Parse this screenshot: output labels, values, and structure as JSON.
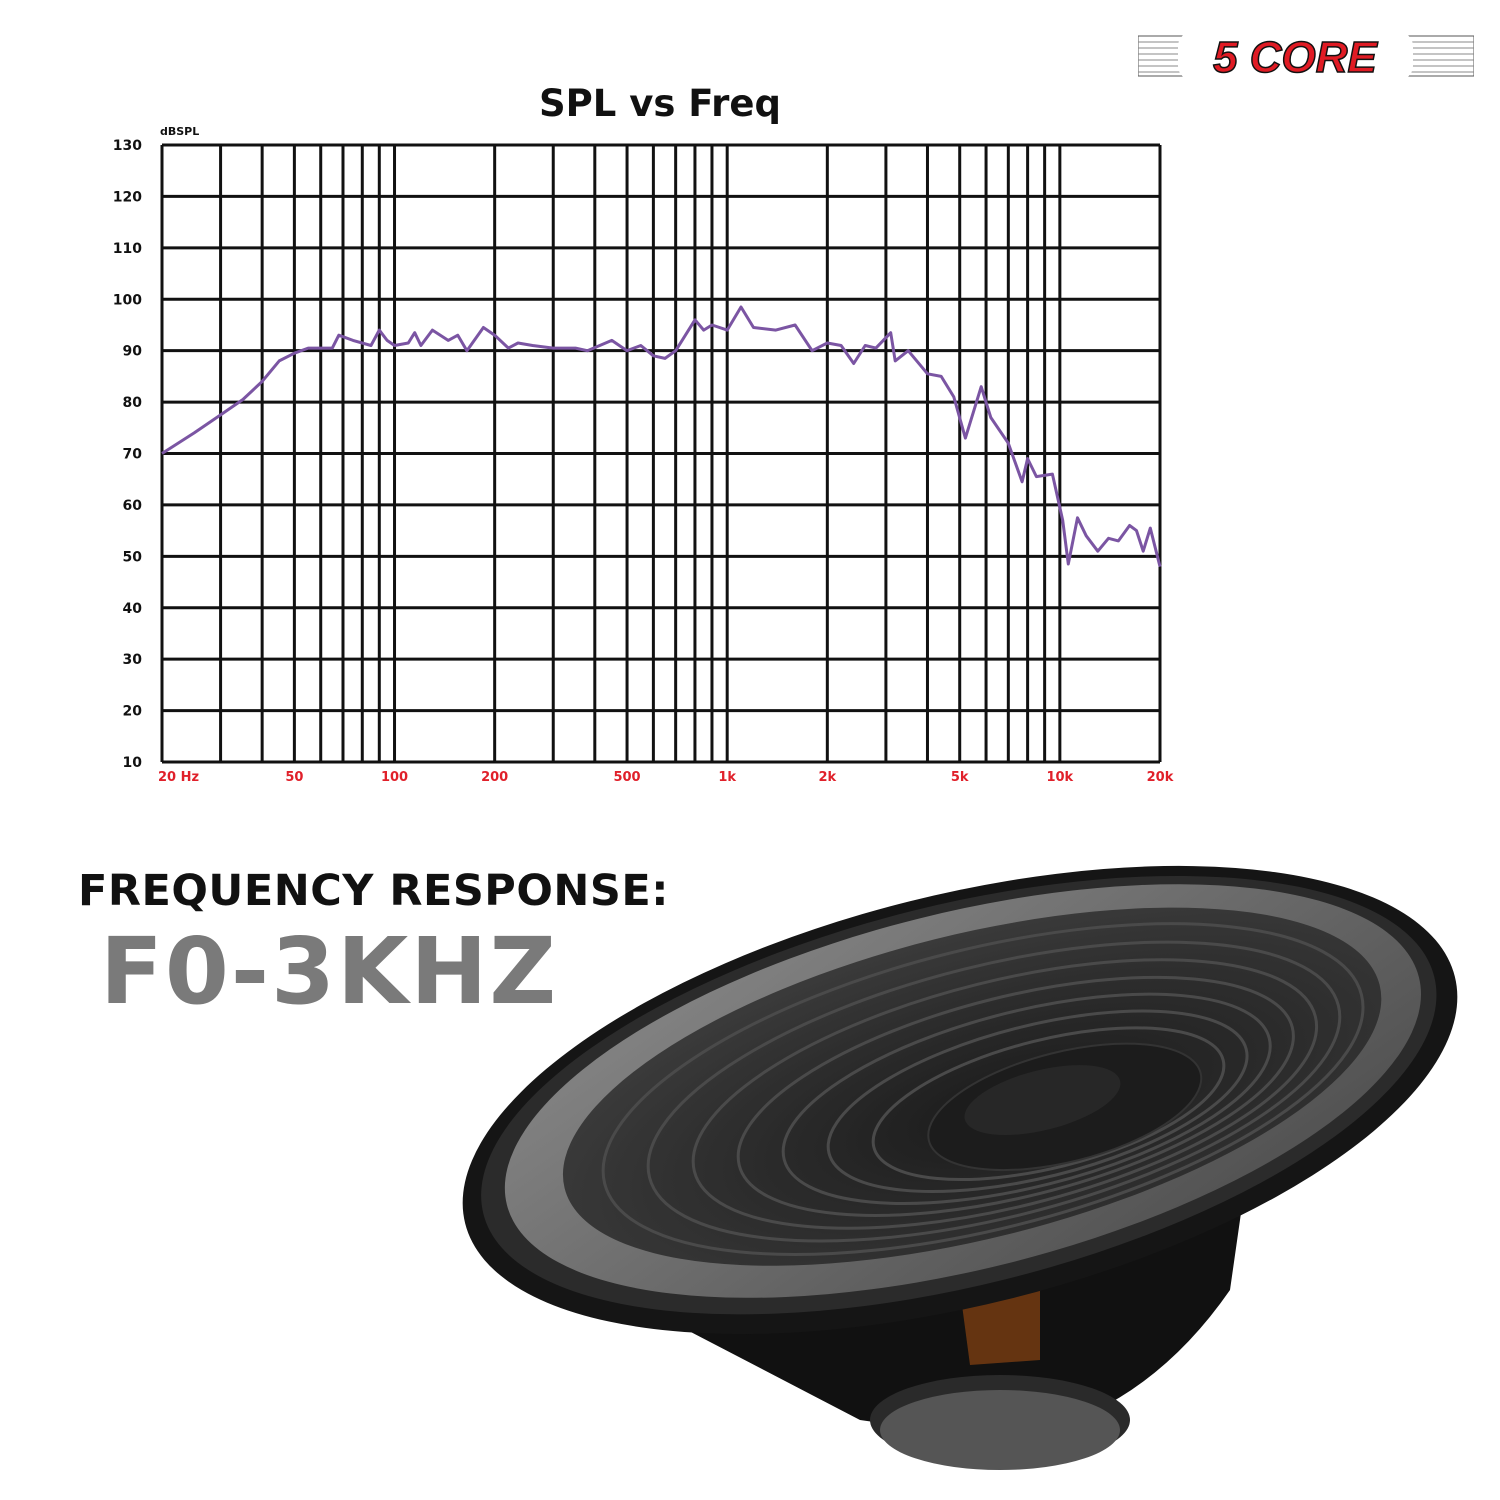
{
  "logo": {
    "text": "5 CORE",
    "color": "#e01b24"
  },
  "chart_data": {
    "type": "line",
    "title": "SPL vs Freq",
    "ylabel": "dBSPL",
    "xlabel": "",
    "x_scale": "log",
    "xlim": [
      20,
      20000
    ],
    "ylim": [
      10,
      130
    ],
    "grid": true,
    "line_color": "#7b55a3",
    "x_tick_color": "#e0202a",
    "y_ticks": [
      130,
      120,
      110,
      100,
      90,
      80,
      70,
      60,
      50,
      40,
      30,
      20,
      10
    ],
    "x_tick_labels": [
      {
        "value": 20,
        "label": "20 Hz"
      },
      {
        "value": 50,
        "label": "50"
      },
      {
        "value": 100,
        "label": "100"
      },
      {
        "value": 200,
        "label": "200"
      },
      {
        "value": 500,
        "label": "500"
      },
      {
        "value": 1000,
        "label": "1k"
      },
      {
        "value": 2000,
        "label": "2k"
      },
      {
        "value": 5000,
        "label": "5k"
      },
      {
        "value": 10000,
        "label": "10k"
      },
      {
        "value": 20000,
        "label": "20k"
      }
    ],
    "series": [
      {
        "points": [
          [
            20,
            70
          ],
          [
            25,
            74
          ],
          [
            30,
            77.5
          ],
          [
            35,
            80.5
          ],
          [
            40,
            84
          ],
          [
            45,
            88
          ],
          [
            50,
            89.5
          ],
          [
            55,
            90.5
          ],
          [
            65,
            90.5
          ],
          [
            68,
            93
          ],
          [
            75,
            92
          ],
          [
            85,
            91
          ],
          [
            90,
            94
          ],
          [
            95,
            92
          ],
          [
            100,
            91
          ],
          [
            110,
            91.5
          ],
          [
            115,
            93.5
          ],
          [
            120,
            91
          ],
          [
            130,
            94
          ],
          [
            145,
            92
          ],
          [
            155,
            93
          ],
          [
            165,
            90
          ],
          [
            185,
            94.5
          ],
          [
            200,
            93
          ],
          [
            220,
            90.5
          ],
          [
            235,
            91.5
          ],
          [
            260,
            91
          ],
          [
            300,
            90.5
          ],
          [
            350,
            90.5
          ],
          [
            380,
            90
          ],
          [
            450,
            92
          ],
          [
            500,
            90
          ],
          [
            550,
            91
          ],
          [
            600,
            89
          ],
          [
            650,
            88.5
          ],
          [
            700,
            90
          ],
          [
            800,
            96
          ],
          [
            850,
            94
          ],
          [
            900,
            95
          ],
          [
            1000,
            94
          ],
          [
            1100,
            98.5
          ],
          [
            1200,
            94.5
          ],
          [
            1400,
            94
          ],
          [
            1600,
            95
          ],
          [
            1800,
            90
          ],
          [
            2000,
            91.5
          ],
          [
            2200,
            91
          ],
          [
            2400,
            87.5
          ],
          [
            2600,
            91
          ],
          [
            2800,
            90.5
          ],
          [
            3100,
            93.5
          ],
          [
            3200,
            88
          ],
          [
            3500,
            90
          ],
          [
            4000,
            85.5
          ],
          [
            4400,
            85
          ],
          [
            4800,
            81
          ],
          [
            5200,
            73
          ],
          [
            5800,
            83
          ],
          [
            6200,
            77
          ],
          [
            7000,
            72
          ],
          [
            7700,
            64.5
          ],
          [
            8000,
            69
          ],
          [
            8500,
            65.5
          ],
          [
            9500,
            66
          ],
          [
            10200,
            57
          ],
          [
            10600,
            48.5
          ],
          [
            11300,
            57.5
          ],
          [
            12000,
            54
          ],
          [
            13000,
            51
          ],
          [
            14000,
            53.5
          ],
          [
            15000,
            53
          ],
          [
            16200,
            56
          ],
          [
            17000,
            55
          ],
          [
            17800,
            51
          ],
          [
            18700,
            55.5
          ],
          [
            20000,
            48
          ]
        ]
      }
    ]
  },
  "frequency": {
    "heading": "FREQUENCY RESPONSE:",
    "value": "F0-3KHZ"
  }
}
